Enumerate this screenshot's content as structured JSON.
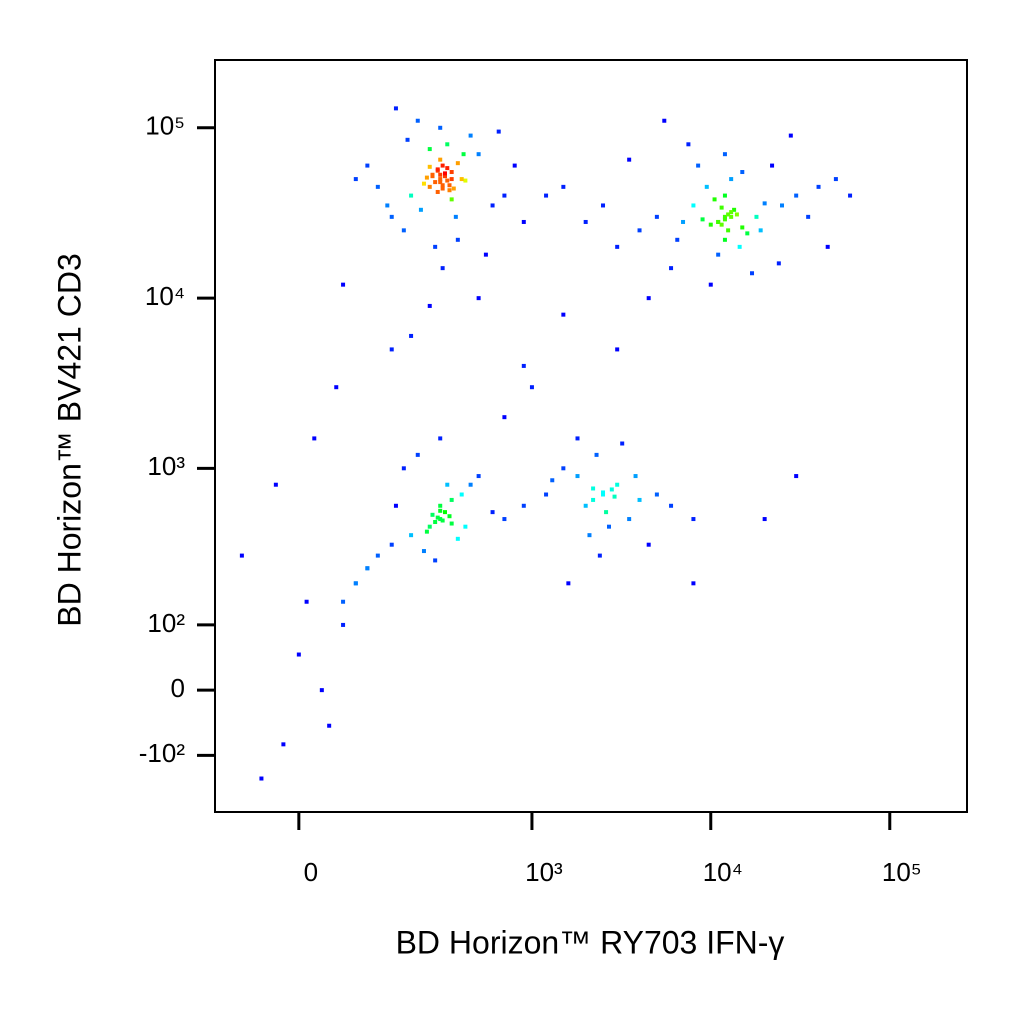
{
  "chart_data": {
    "type": "scatter",
    "x_label": "BD Horizon™ RY703 IFN-γ",
    "y_label": "BD Horizon™ BV421 CD3",
    "scale": "biexponential",
    "color_by": "density",
    "colormap": [
      "#0000ff",
      "#00ffff",
      "#00ff00",
      "#ffff00",
      "#ff0000"
    ],
    "xlim": [
      -130,
      270000
    ],
    "ylim": [
      -250,
      250000
    ],
    "xticks": [
      0,
      {
        "value": 1000,
        "label": "10³"
      },
      {
        "value": 10000,
        "label": "10⁴"
      },
      {
        "value": 100000,
        "label": "10⁵"
      }
    ],
    "yticks": [
      {
        "value": -100,
        "label": "-10²"
      },
      0,
      {
        "value": 100,
        "label": "10²"
      },
      {
        "value": 1000,
        "label": "10³"
      },
      {
        "value": 10000,
        "label": "10⁴"
      },
      {
        "value": 100000,
        "label": "10⁵"
      }
    ],
    "x": [
      300,
      320,
      280,
      350,
      260,
      310,
      290,
      400,
      240,
      330,
      270,
      360,
      300,
      250,
      420,
      200,
      380,
      310,
      290,
      340,
      150,
      500,
      180,
      600,
      120,
      700,
      450,
      220,
      900,
      100,
      280,
      330,
      260,
      310,
      350,
      300,
      230,
      370,
      410,
      190,
      80,
      1200,
      60,
      550,
      160,
      800,
      260,
      380,
      140,
      650,
      300,
      320,
      290,
      340,
      270,
      310,
      350,
      260,
      300,
      330,
      12000,
      11000,
      13000,
      10000,
      14000,
      12500,
      9000,
      15000,
      11500,
      13500,
      8000,
      16000,
      12000,
      10500,
      18000,
      7000,
      20000,
      12000,
      14500,
      9500,
      5000,
      25000,
      4000,
      30000,
      3000,
      40000,
      6000,
      22000,
      2500,
      50000,
      11000,
      13000,
      12000,
      10000,
      15000,
      8500,
      17000,
      7500,
      19000,
      6500,
      2000,
      35000,
      28000,
      4500,
      60000,
      1500,
      45000,
      3500,
      24000,
      5500,
      12000,
      12500,
      11500,
      13000,
      11000,
      300,
      280,
      320,
      260,
      340,
      300,
      250,
      350,
      200,
      400,
      150,
      450,
      120,
      500,
      100,
      600,
      180,
      380,
      220,
      700,
      80,
      900,
      300,
      280,
      330,
      60,
      1200,
      240,
      420,
      160,
      290,
      310,
      270,
      350,
      300,
      2500,
      2200,
      2800,
      2000,
      3000,
      2600,
      1800,
      3500,
      1500,
      4000,
      2300,
      2700,
      5000,
      1300,
      6000,
      2400,
      3200,
      2100,
      8000,
      1600,
      2500,
      2900,
      2200,
      4500,
      3800,
      -50,
      -20,
      0,
      30,
      10,
      60,
      40,
      100,
      -80,
      20,
      50,
      150,
      80,
      -30,
      200,
      1000,
      1500,
      3000,
      8000,
      20000,
      700,
      900,
      500,
      1800,
      30000
    ],
    "values": [
      50000,
      52000,
      48000,
      55000,
      45000,
      60000,
      42000,
      50000,
      47000,
      58000,
      53000,
      44000,
      65000,
      51000,
      49000,
      40000,
      62000,
      46000,
      56000,
      43000,
      30000,
      70000,
      25000,
      35000,
      45000,
      40000,
      90000,
      110000,
      28000,
      60000,
      20000,
      80000,
      75000,
      15000,
      38000,
      100000,
      33000,
      30000,
      70000,
      85000,
      50000,
      40000,
      12000,
      18000,
      130000,
      60000,
      9000,
      22000,
      35000,
      95000,
      48000,
      54000,
      57000,
      46000,
      52000,
      44000,
      50000,
      59000,
      53000,
      49000,
      30000,
      28000,
      32000,
      27000,
      31000,
      25000,
      29000,
      26000,
      34000,
      33000,
      35000,
      24000,
      22000,
      38000,
      30000,
      28000,
      36000,
      40000,
      20000,
      45000,
      30000,
      35000,
      25000,
      40000,
      20000,
      45000,
      15000,
      60000,
      35000,
      50000,
      18000,
      50000,
      70000,
      12000,
      55000,
      60000,
      14000,
      80000,
      25000,
      22000,
      28000,
      30000,
      90000,
      10000,
      40000,
      45000,
      20000,
      65000,
      16000,
      110000,
      29000,
      31000,
      27000,
      30000,
      28000,
      500,
      480,
      550,
      450,
      520,
      600,
      420,
      650,
      400,
      700,
      350,
      800,
      300,
      900,
      250,
      550,
      1000,
      380,
      1200,
      500,
      200,
      600,
      1500,
      280,
      800,
      150,
      700,
      320,
      450,
      600,
      510,
      490,
      530,
      470,
      560,
      700,
      650,
      750,
      600,
      800,
      550,
      900,
      500,
      1000,
      650,
      1200,
      450,
      700,
      850,
      600,
      300,
      1400,
      400,
      500,
      200,
      720,
      680,
      760,
      350,
      900,
      -150,
      -80,
      50,
      0,
      150,
      100,
      -50,
      250,
      300,
      1500,
      3000,
      5000,
      200,
      800,
      6000,
      3000,
      8000,
      5000,
      200,
      500,
      2000,
      4000,
      10000,
      1500,
      900
    ]
  }
}
